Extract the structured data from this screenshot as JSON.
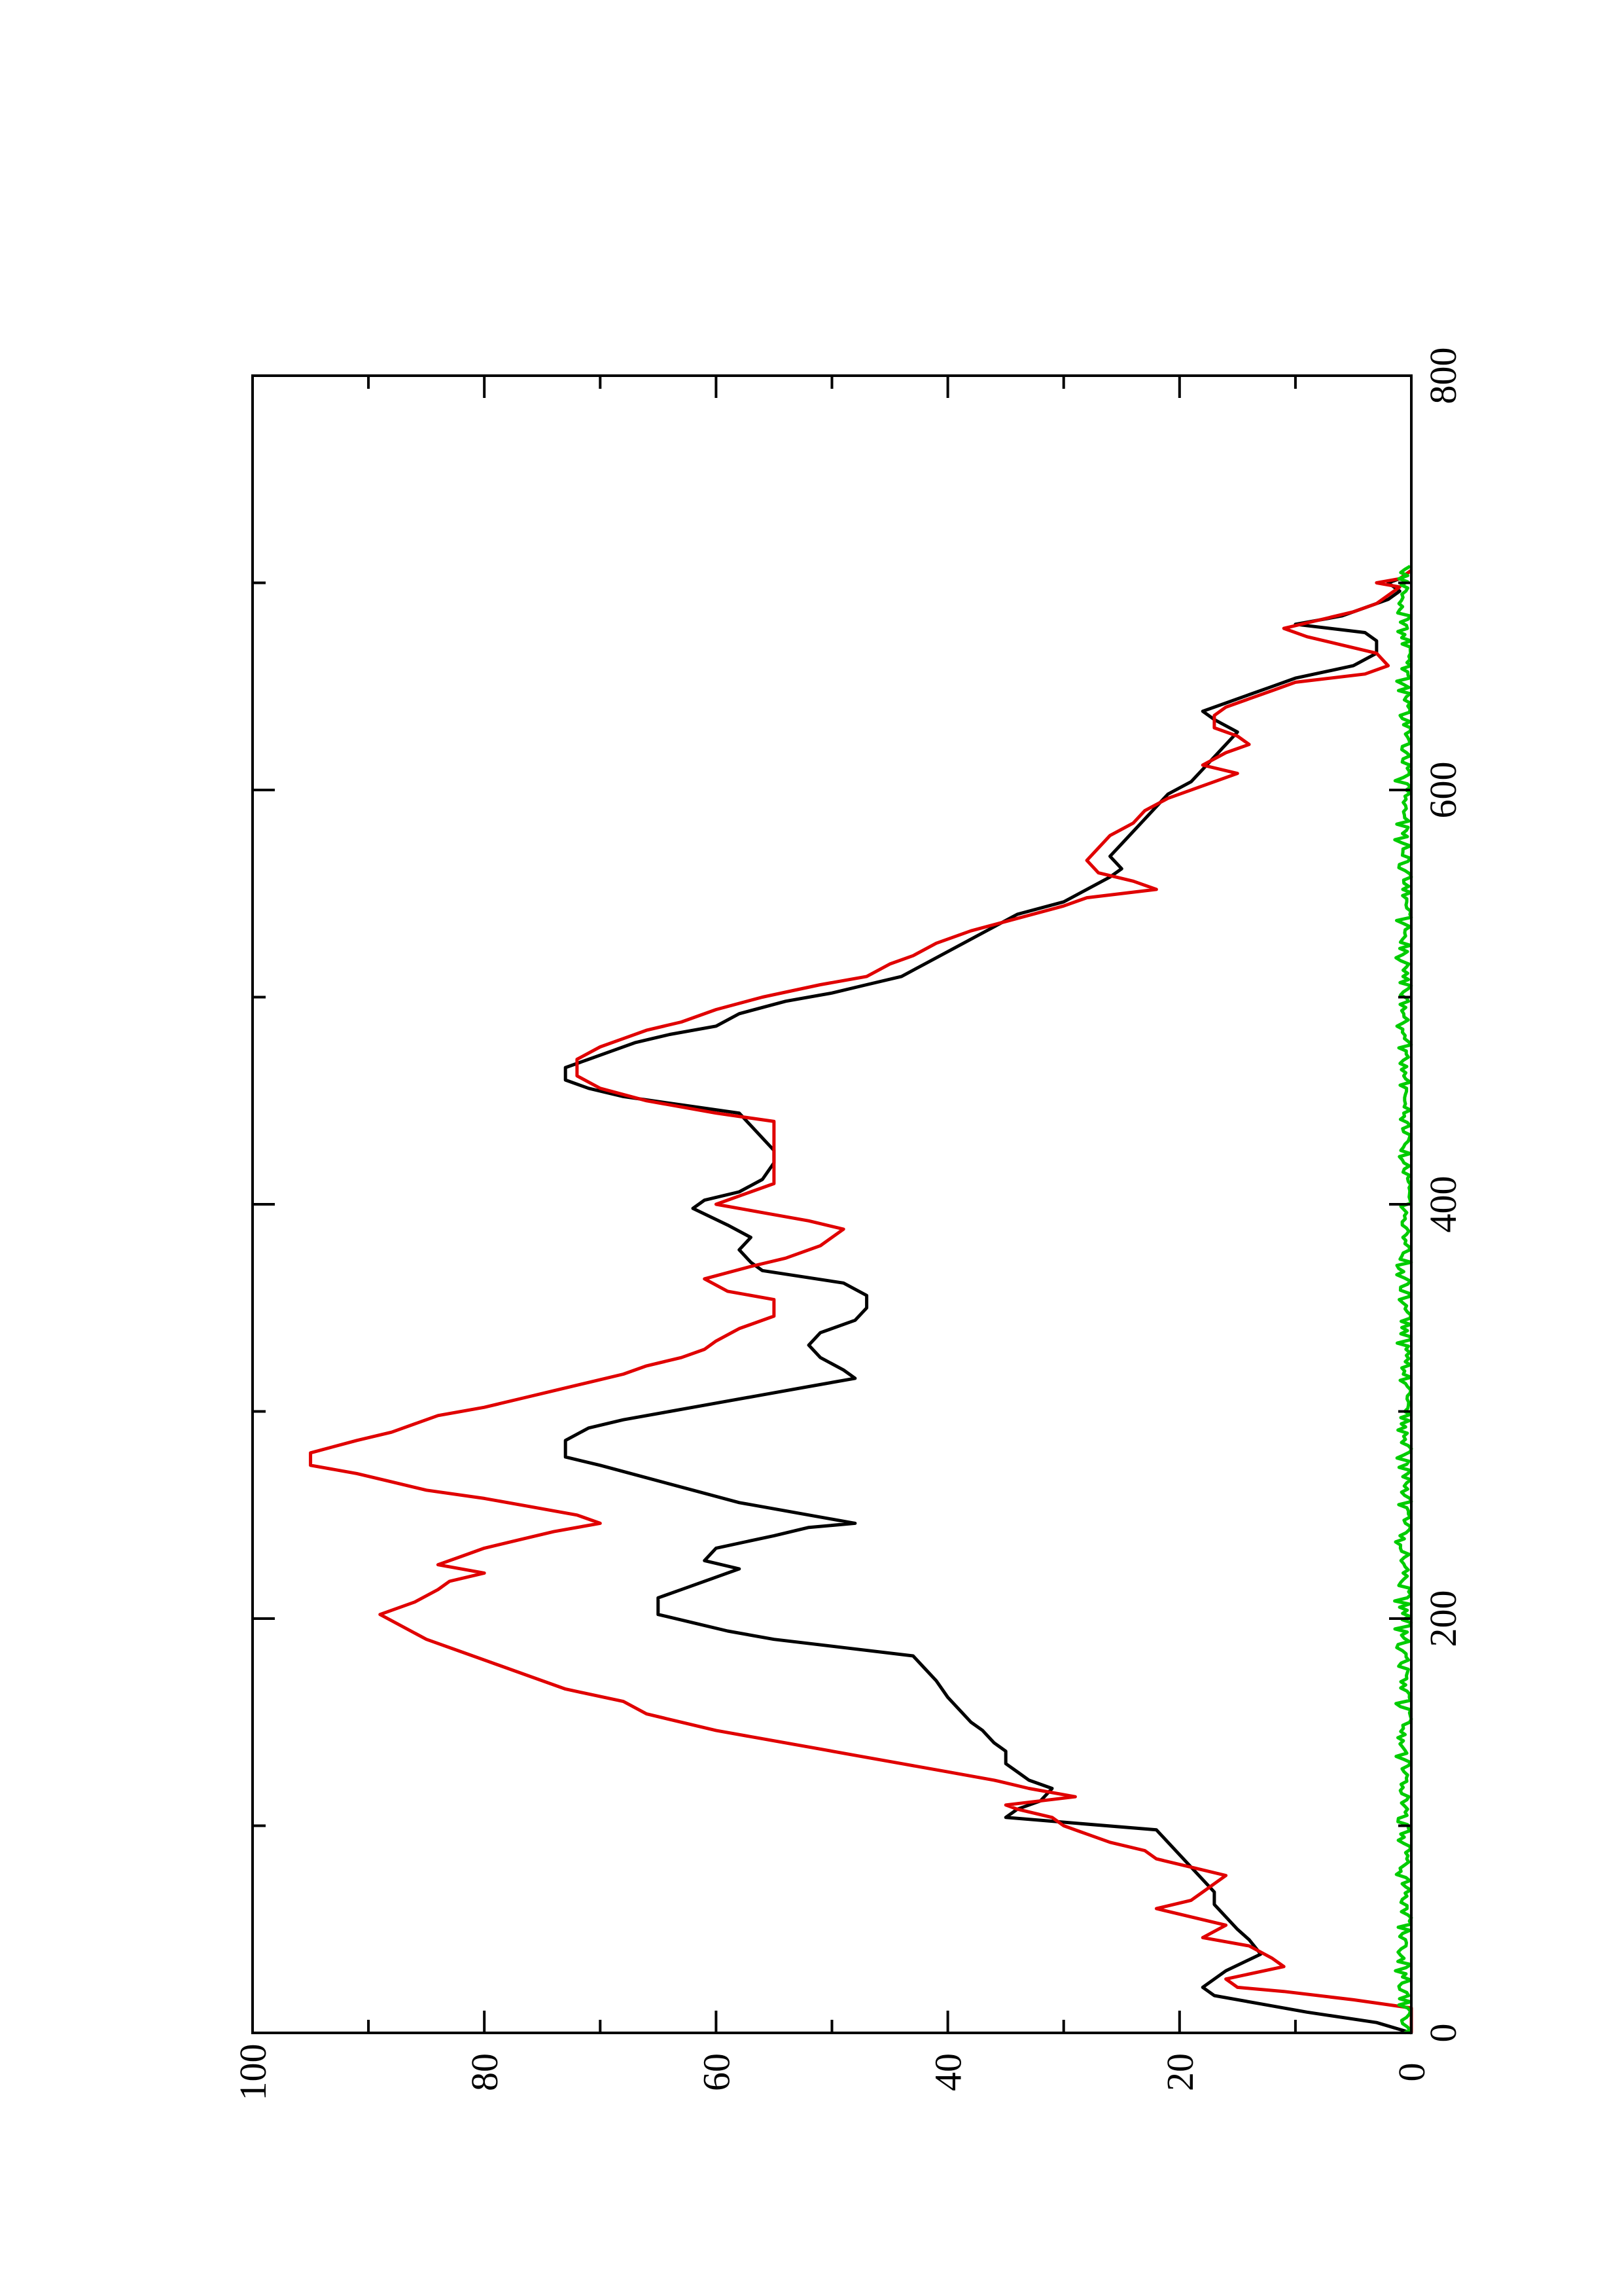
{
  "chart_data": {
    "type": "line",
    "orientation": "rotated-90-ccw",
    "title": "",
    "xlabel": "",
    "ylabel": "",
    "xlim": [
      0,
      800
    ],
    "ylim": [
      0,
      100
    ],
    "x_ticks": [
      "0",
      "200",
      "400",
      "600",
      "800"
    ],
    "y_ticks": [
      "0",
      "20",
      "40",
      "60",
      "80",
      "100"
    ],
    "x_minor_ticks": [
      100,
      300,
      500,
      700
    ],
    "y_minor_ticks": [
      10,
      30,
      50,
      70,
      90
    ],
    "grid": false,
    "legend": "none",
    "series": [
      {
        "color": "#000000",
        "points": [
          [
            0,
            0
          ],
          [
            5,
            3
          ],
          [
            10,
            9
          ],
          [
            14,
            13
          ],
          [
            18,
            17
          ],
          [
            22,
            18
          ],
          [
            30,
            16
          ],
          [
            38,
            13
          ],
          [
            45,
            14
          ],
          [
            50,
            15
          ],
          [
            56,
            16
          ],
          [
            62,
            17
          ],
          [
            68,
            17
          ],
          [
            74,
            18
          ],
          [
            80,
            19
          ],
          [
            86,
            20
          ],
          [
            92,
            21
          ],
          [
            98,
            22
          ],
          [
            104,
            35
          ],
          [
            108,
            34
          ],
          [
            112,
            32
          ],
          [
            118,
            31
          ],
          [
            122,
            33
          ],
          [
            126,
            34
          ],
          [
            130,
            35
          ],
          [
            136,
            35
          ],
          [
            140,
            36
          ],
          [
            146,
            37
          ],
          [
            150,
            38
          ],
          [
            156,
            39
          ],
          [
            162,
            40
          ],
          [
            170,
            41
          ],
          [
            176,
            42
          ],
          [
            182,
            43
          ],
          [
            186,
            49
          ],
          [
            190,
            55
          ],
          [
            194,
            59
          ],
          [
            198,
            62
          ],
          [
            202,
            65
          ],
          [
            210,
            65
          ],
          [
            214,
            63
          ],
          [
            220,
            60
          ],
          [
            224,
            58
          ],
          [
            228,
            61
          ],
          [
            234,
            60
          ],
          [
            240,
            55
          ],
          [
            244,
            52
          ],
          [
            246,
            48
          ],
          [
            248,
            50
          ],
          [
            252,
            54
          ],
          [
            256,
            58
          ],
          [
            262,
            62
          ],
          [
            268,
            66
          ],
          [
            274,
            70
          ],
          [
            278,
            73
          ],
          [
            286,
            73
          ],
          [
            292,
            71
          ],
          [
            296,
            68
          ],
          [
            300,
            64
          ],
          [
            304,
            60
          ],
          [
            308,
            56
          ],
          [
            312,
            52
          ],
          [
            316,
            48
          ],
          [
            320,
            49
          ],
          [
            326,
            51
          ],
          [
            332,
            52
          ],
          [
            338,
            51
          ],
          [
            344,
            48
          ],
          [
            350,
            47
          ],
          [
            356,
            47
          ],
          [
            362,
            49
          ],
          [
            368,
            56
          ],
          [
            372,
            57
          ],
          [
            378,
            58
          ],
          [
            384,
            57
          ],
          [
            390,
            59
          ],
          [
            398,
            62
          ],
          [
            402,
            61
          ],
          [
            406,
            58
          ],
          [
            412,
            56
          ],
          [
            420,
            55
          ],
          [
            426,
            55
          ],
          [
            432,
            56
          ],
          [
            438,
            57
          ],
          [
            444,
            58
          ],
          [
            448,
            63
          ],
          [
            452,
            68
          ],
          [
            456,
            71
          ],
          [
            460,
            73
          ],
          [
            466,
            73
          ],
          [
            470,
            71
          ],
          [
            474,
            69
          ],
          [
            478,
            67
          ],
          [
            482,
            64
          ],
          [
            486,
            60
          ],
          [
            492,
            58
          ],
          [
            498,
            54
          ],
          [
            502,
            50
          ],
          [
            506,
            47
          ],
          [
            510,
            44
          ],
          [
            516,
            42
          ],
          [
            522,
            40
          ],
          [
            528,
            38
          ],
          [
            534,
            36
          ],
          [
            540,
            34
          ],
          [
            546,
            30
          ],
          [
            552,
            28
          ],
          [
            558,
            26
          ],
          [
            562,
            25
          ],
          [
            568,
            26
          ],
          [
            574,
            25
          ],
          [
            580,
            24
          ],
          [
            586,
            23
          ],
          [
            592,
            22
          ],
          [
            598,
            21
          ],
          [
            604,
            19
          ],
          [
            610,
            18
          ],
          [
            616,
            17
          ],
          [
            622,
            16
          ],
          [
            628,
            15
          ],
          [
            634,
            17
          ],
          [
            638,
            18
          ],
          [
            642,
            16
          ],
          [
            646,
            14
          ],
          [
            650,
            12
          ],
          [
            654,
            10
          ],
          [
            660,
            5
          ],
          [
            666,
            3
          ],
          [
            672,
            3
          ],
          [
            676,
            4
          ],
          [
            680,
            10
          ],
          [
            684,
            6
          ],
          [
            688,
            4
          ],
          [
            692,
            2
          ],
          [
            696,
            1
          ],
          [
            700,
            2
          ],
          [
            702,
            1
          ],
          [
            706,
            0
          ]
        ]
      },
      {
        "color": "#e00000",
        "points": [
          [
            0,
            0
          ],
          [
            12,
            0
          ],
          [
            16,
            5
          ],
          [
            20,
            11
          ],
          [
            22,
            15
          ],
          [
            26,
            16
          ],
          [
            32,
            11
          ],
          [
            36,
            12
          ],
          [
            42,
            14
          ],
          [
            46,
            18
          ],
          [
            52,
            16
          ],
          [
            56,
            19
          ],
          [
            60,
            22
          ],
          [
            64,
            19
          ],
          [
            68,
            18
          ],
          [
            72,
            17
          ],
          [
            76,
            16
          ],
          [
            80,
            19
          ],
          [
            84,
            22
          ],
          [
            88,
            23
          ],
          [
            92,
            26
          ],
          [
            96,
            28
          ],
          [
            100,
            30
          ],
          [
            104,
            31
          ],
          [
            108,
            34
          ],
          [
            110,
            35
          ],
          [
            114,
            29
          ],
          [
            118,
            33
          ],
          [
            122,
            36
          ],
          [
            126,
            40
          ],
          [
            130,
            44
          ],
          [
            134,
            48
          ],
          [
            138,
            52
          ],
          [
            142,
            56
          ],
          [
            146,
            60
          ],
          [
            150,
            63
          ],
          [
            154,
            66
          ],
          [
            160,
            68
          ],
          [
            166,
            73
          ],
          [
            172,
            76
          ],
          [
            178,
            79
          ],
          [
            184,
            82
          ],
          [
            190,
            85
          ],
          [
            196,
            87
          ],
          [
            202,
            89
          ],
          [
            208,
            86
          ],
          [
            214,
            84
          ],
          [
            218,
            83
          ],
          [
            222,
            80
          ],
          [
            226,
            84
          ],
          [
            230,
            82
          ],
          [
            234,
            80
          ],
          [
            238,
            77
          ],
          [
            242,
            74
          ],
          [
            246,
            70
          ],
          [
            250,
            72
          ],
          [
            254,
            76
          ],
          [
            258,
            80
          ],
          [
            262,
            85
          ],
          [
            266,
            88
          ],
          [
            270,
            91
          ],
          [
            274,
            95
          ],
          [
            280,
            95
          ],
          [
            286,
            91
          ],
          [
            290,
            88
          ],
          [
            294,
            86
          ],
          [
            298,
            84
          ],
          [
            302,
            80
          ],
          [
            306,
            77
          ],
          [
            310,
            74
          ],
          [
            314,
            71
          ],
          [
            318,
            68
          ],
          [
            322,
            66
          ],
          [
            326,
            63
          ],
          [
            330,
            61
          ],
          [
            334,
            60
          ],
          [
            340,
            58
          ],
          [
            346,
            55
          ],
          [
            354,
            55
          ],
          [
            358,
            59
          ],
          [
            364,
            61
          ],
          [
            370,
            57
          ],
          [
            374,
            54
          ],
          [
            380,
            51
          ],
          [
            384,
            50
          ],
          [
            388,
            49
          ],
          [
            392,
            52
          ],
          [
            396,
            56
          ],
          [
            400,
            60
          ],
          [
            406,
            57
          ],
          [
            410,
            55
          ],
          [
            420,
            55
          ],
          [
            432,
            55
          ],
          [
            440,
            55
          ],
          [
            444,
            60
          ],
          [
            450,
            66
          ],
          [
            456,
            70
          ],
          [
            462,
            72
          ],
          [
            470,
            72
          ],
          [
            476,
            70
          ],
          [
            480,
            68
          ],
          [
            484,
            66
          ],
          [
            488,
            63
          ],
          [
            494,
            60
          ],
          [
            500,
            56
          ],
          [
            506,
            51
          ],
          [
            510,
            47
          ],
          [
            516,
            45
          ],
          [
            520,
            43
          ],
          [
            526,
            41
          ],
          [
            532,
            38
          ],
          [
            538,
            34
          ],
          [
            544,
            30
          ],
          [
            548,
            28
          ],
          [
            552,
            22
          ],
          [
            556,
            24
          ],
          [
            560,
            27
          ],
          [
            566,
            28
          ],
          [
            572,
            27
          ],
          [
            578,
            26
          ],
          [
            584,
            24
          ],
          [
            590,
            23
          ],
          [
            596,
            21
          ],
          [
            602,
            18
          ],
          [
            608,
            15
          ],
          [
            612,
            18
          ],
          [
            618,
            16
          ],
          [
            622,
            14
          ],
          [
            626,
            15
          ],
          [
            630,
            17
          ],
          [
            636,
            17
          ],
          [
            640,
            16
          ],
          [
            644,
            14
          ],
          [
            648,
            12
          ],
          [
            652,
            10
          ],
          [
            656,
            4
          ],
          [
            660,
            2
          ],
          [
            666,
            3
          ],
          [
            670,
            6
          ],
          [
            674,
            9
          ],
          [
            678,
            11
          ],
          [
            682,
            8
          ],
          [
            686,
            5
          ],
          [
            690,
            3
          ],
          [
            694,
            2
          ],
          [
            698,
            1
          ],
          [
            700,
            3
          ],
          [
            702,
            1
          ],
          [
            706,
            0
          ]
        ]
      },
      {
        "color": "#00cc00",
        "points": "noise-near-zero",
        "ymax": 1.5,
        "xmax": 708
      }
    ]
  }
}
